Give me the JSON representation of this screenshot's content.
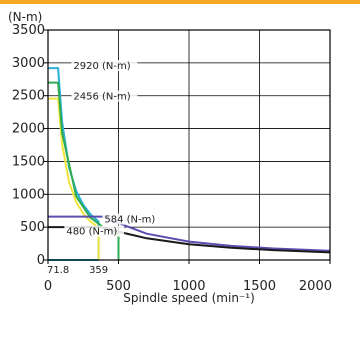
{
  "accent_color": "#f5a623",
  "chart_data": {
    "type": "line",
    "title": "",
    "xlabel": "Spindle speed (min⁻¹)",
    "ylabel": "(N-m)",
    "xlim": [
      0,
      2000
    ],
    "ylim": [
      0,
      3500
    ],
    "x_ticks": [
      "0",
      "500",
      "1000",
      "1500",
      "2000"
    ],
    "y_ticks": [
      "0",
      "500",
      "1000",
      "1500",
      "2000",
      "2500",
      "3000",
      "3500"
    ],
    "grid": true,
    "x_special_ticks": [
      {
        "label": "71.8",
        "value": 71.8
      },
      {
        "label": "359",
        "value": 359
      }
    ],
    "series": [
      {
        "color": "#2ab0d8",
        "x": [
          0,
          71.8,
          71.8,
          100,
          150,
          200,
          250,
          300,
          359,
          359,
          0
        ],
        "y": [
          2920,
          2920,
          2920,
          2097,
          1398,
          1048,
          839,
          699,
          584,
          0,
          0
        ]
      },
      {
        "color": "#f0e63c",
        "x": [
          0,
          71.8,
          71.8,
          100,
          150,
          200,
          250,
          300,
          359,
          359
        ],
        "y": [
          2456,
          2456,
          2456,
          1763,
          1176,
          882,
          705,
          588,
          491,
          0
        ]
      },
      {
        "color": "#2eaa50",
        "x": [
          0,
          71.8,
          71.8,
          100,
          200,
          300,
          400,
          500,
          500
        ],
        "y": [
          2700,
          2700,
          2700,
          1939,
          970,
          646,
          485,
          388,
          0
        ]
      },
      {
        "color": "#5a4fb0",
        "x": [
          0,
          400,
          500,
          700,
          1000,
          1300,
          1600,
          2000
        ],
        "y": [
          660,
          660,
          560,
          400,
          280,
          215,
          175,
          140
        ]
      },
      {
        "color": "#1a1a1a",
        "x": [
          0,
          380,
          500,
          700,
          1000,
          1300,
          1600,
          2000
        ],
        "y": [
          500,
          500,
          430,
          330,
          240,
          185,
          150,
          115
        ]
      }
    ],
    "annotations": [
      {
        "text": "2920 (N-m)",
        "x": 180,
        "y": 2920
      },
      {
        "text": "2456 (N-m)",
        "x": 180,
        "y": 2456
      },
      {
        "text": "584 (N-m)",
        "x": 400,
        "y": 584
      },
      {
        "text": "480 (N-m)",
        "x": 130,
        "y": 400
      }
    ]
  }
}
